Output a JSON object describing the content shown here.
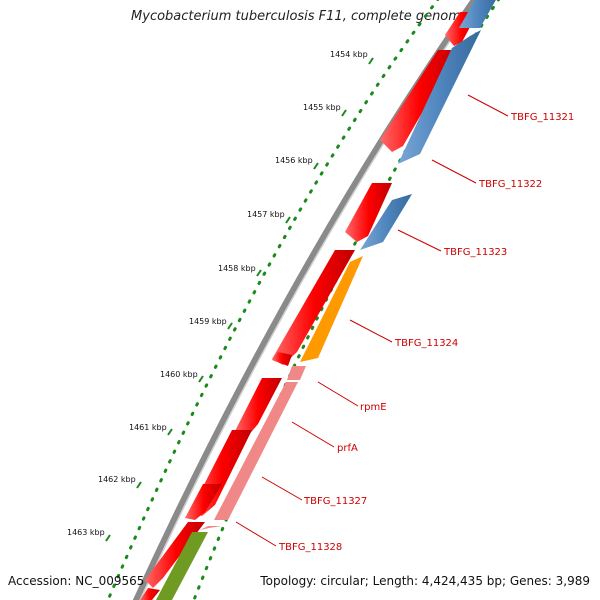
{
  "title": "Mycobacterium tuberculosis F11, complete genome",
  "footer": {
    "accession": "Accession: NC_009565",
    "summary": "Topology: circular; Length: 4,424,435 bp; Genes: 3,989"
  },
  "ruler": {
    "tick_labels": [
      "1454 kbp",
      "1455 kbp",
      "1456 kbp",
      "1457 kbp",
      "1458 kbp",
      "1459 kbp",
      "1460 kbp",
      "1461 kbp",
      "1462 kbp",
      "1463 kbp"
    ]
  },
  "gene_labels": [
    "TBFG_11321",
    "TBFG_11322",
    "TBFG_11323",
    "TBFG_11324",
    "rpmE",
    "prfA",
    "TBFG_11327",
    "TBFG_11328"
  ],
  "colors": {
    "backbone": "#8a8a8a",
    "forward_cds": "#ff0000",
    "blue_cds": "#4f86be",
    "orange_cds": "#ff9900",
    "pink_cds": "#f08888",
    "olive_cds": "#6f9b22",
    "tick_green": "#1a8a1a",
    "label_red": "#cc0000"
  }
}
